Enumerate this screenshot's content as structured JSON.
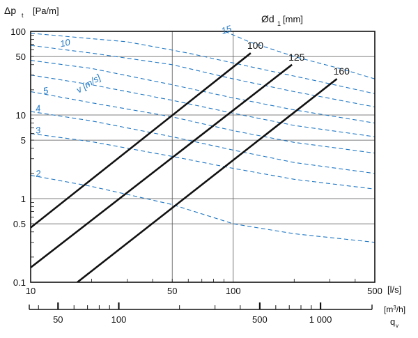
{
  "chart_data": {
    "type": "line",
    "title": "",
    "ylabel": "Δp",
    "ylabel_sub": "t",
    "ylabel_unit": "[Pa/m]",
    "xunit": "[l/s]",
    "x2unit": "[m3/h]",
    "x2label": "q",
    "x2label_sub": "v",
    "diameter_label": "Ød",
    "diameter_label_sub": "1",
    "diameter_unit": "[mm]",
    "velocity_label": "v [m/s]",
    "xscale": "log",
    "yscale": "log",
    "xlim": [
      10,
      500
    ],
    "ylim": [
      0.1,
      100
    ],
    "x2lim": [
      36,
      1800
    ],
    "grid": true,
    "yticks": [
      {
        "value": 100,
        "label": "100"
      },
      {
        "value": 50,
        "label": "50"
      },
      {
        "value": 10,
        "label": "10"
      },
      {
        "value": 5,
        "label": "5"
      },
      {
        "value": 1,
        "label": "1"
      },
      {
        "value": 0.5,
        "label": "0.5"
      },
      {
        "value": 0.1,
        "label": "0.1"
      }
    ],
    "xticks": [
      {
        "value": 10,
        "label": "10"
      },
      {
        "value": 50,
        "label": "50"
      },
      {
        "value": 100,
        "label": "100"
      },
      {
        "value": 500,
        "label": "500"
      }
    ],
    "x2ticks": [
      {
        "value": 50,
        "label": "50"
      },
      {
        "value": 100,
        "label": "100"
      },
      {
        "value": 500,
        "label": "500"
      },
      {
        "value": 1000,
        "label": "1 000"
      }
    ],
    "diameter_series": [
      {
        "name": "100",
        "color": "#111111",
        "x": [
          10,
          122
        ],
        "y": [
          0.45,
          55
        ]
      },
      {
        "name": "125",
        "color": "#111111",
        "x": [
          10,
          195
        ],
        "y": [
          0.15,
          40
        ]
      },
      {
        "name": "160",
        "color": "#111111",
        "x": [
          17,
          325
        ],
        "y": [
          0.1,
          27
        ]
      }
    ],
    "velocity_series": [
      {
        "name": "15",
        "color": "#1f77c4",
        "x": [
          91,
          120,
          200,
          350,
          500
        ],
        "y": [
          100,
          75,
          50,
          35,
          27
        ]
      },
      {
        "name": "",
        "color": "#1f77c4",
        "x": [
          10,
          30,
          60,
          120,
          250,
          500
        ],
        "y": [
          95,
          75,
          55,
          38,
          26,
          18
        ]
      },
      {
        "name": "10",
        "color": "#1f77c4",
        "x": [
          10,
          20,
          50,
          100,
          200,
          500
        ],
        "y": [
          68,
          55,
          40,
          27,
          19,
          12.5
        ]
      },
      {
        "name": "",
        "color": "#1f77c4",
        "x": [
          10,
          20,
          50,
          100,
          200,
          500
        ],
        "y": [
          45,
          36,
          23,
          16,
          11.5,
          8
        ]
      },
      {
        "name": "",
        "color": "#1f77c4",
        "x": [
          10,
          20,
          50,
          100,
          200,
          500
        ],
        "y": [
          30,
          23,
          15,
          10.5,
          7.5,
          5.5
        ]
      },
      {
        "name": "5",
        "color": "#1f77c4",
        "x": [
          10,
          20,
          50,
          100,
          200,
          500
        ],
        "y": [
          19,
          14,
          9.5,
          6.5,
          4.7,
          3.5
        ]
      },
      {
        "name": "4",
        "color": "#1f77c4",
        "x": [
          10,
          20,
          50,
          100,
          200,
          500
        ],
        "y": [
          11,
          8.5,
          5.5,
          3.8,
          2.7,
          2.0
        ]
      },
      {
        "name": "3",
        "color": "#1f77c4",
        "x": [
          10,
          20,
          50,
          100,
          200,
          500
        ],
        "y": [
          6,
          4.8,
          3.2,
          2.3,
          1.7,
          1.3
        ]
      },
      {
        "name": "2",
        "color": "#1f77c4",
        "x": [
          10,
          20,
          50,
          100,
          200,
          500
        ],
        "y": [
          1.9,
          1.4,
          0.85,
          0.5,
          0.38,
          0.3
        ]
      }
    ]
  }
}
